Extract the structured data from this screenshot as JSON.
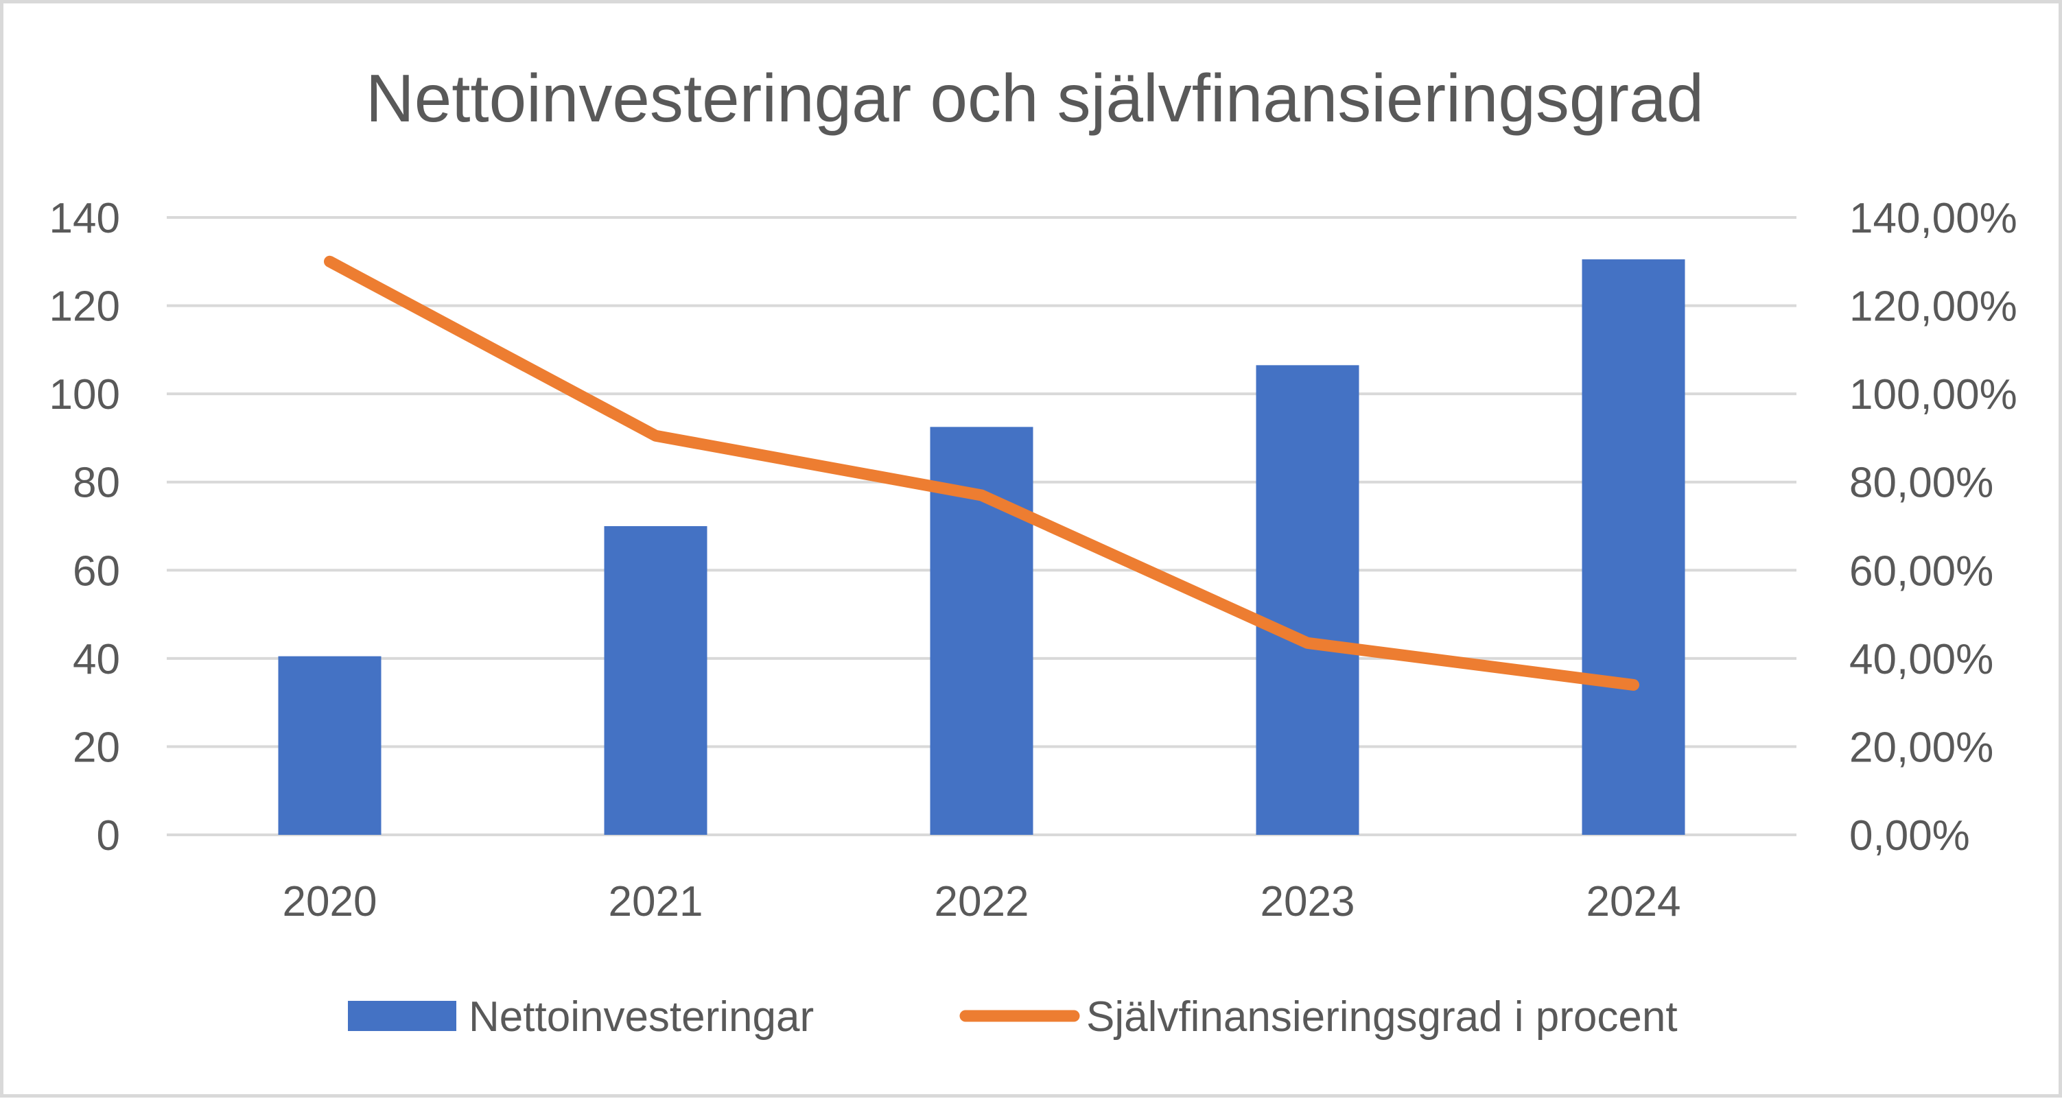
{
  "chart_data": {
    "type": "bar",
    "title": "Nettoinvesteringar och självfinansieringsgrad",
    "categories": [
      "2020",
      "2021",
      "2022",
      "2023",
      "2024"
    ],
    "series": [
      {
        "name": "Nettoinvesteringar",
        "type": "bar",
        "axis": "left",
        "color": "#4472c4",
        "values": [
          40.5,
          70,
          92.5,
          106.5,
          130.5
        ]
      },
      {
        "name": "Självfinansieringsgrad i procent",
        "type": "line",
        "axis": "right",
        "color": "#ed7d31",
        "values": [
          130,
          90.5,
          77,
          43.5,
          34
        ]
      }
    ],
    "y_left": {
      "min": 0,
      "max": 140,
      "step": 20,
      "tick_labels": [
        "0",
        "20",
        "40",
        "60",
        "80",
        "100",
        "120",
        "140"
      ]
    },
    "y_right": {
      "min": 0,
      "max": 140,
      "step": 20,
      "tick_labels": [
        "0,00%",
        "20,00%",
        "40,00%",
        "60,00%",
        "80,00%",
        "100,00%",
        "120,00%",
        "140,00%"
      ]
    },
    "grid": true,
    "legend_position": "bottom"
  }
}
